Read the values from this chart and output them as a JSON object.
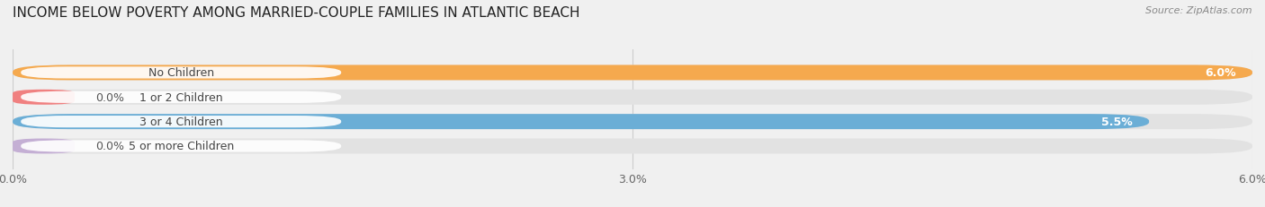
{
  "title": "INCOME BELOW POVERTY AMONG MARRIED-COUPLE FAMILIES IN ATLANTIC BEACH",
  "source": "Source: ZipAtlas.com",
  "categories": [
    "No Children",
    "1 or 2 Children",
    "3 or 4 Children",
    "5 or more Children"
  ],
  "values": [
    6.0,
    0.0,
    5.5,
    0.0
  ],
  "bar_colors": [
    "#f5a94e",
    "#f08080",
    "#6baed6",
    "#c4afd4"
  ],
  "xlim": [
    0,
    6.0
  ],
  "xticks": [
    0.0,
    3.0,
    6.0
  ],
  "xtick_labels": [
    "0.0%",
    "3.0%",
    "6.0%"
  ],
  "background_color": "#f0f0f0",
  "bar_background_color": "#e2e2e2",
  "title_fontsize": 11,
  "tick_fontsize": 9,
  "bar_label_fontsize": 9,
  "category_fontsize": 9
}
